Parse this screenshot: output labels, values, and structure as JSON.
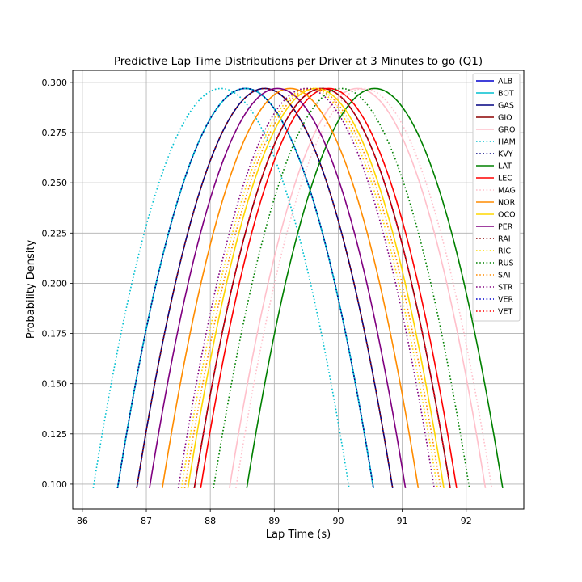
{
  "chart_data": {
    "type": "line",
    "title": "Predictive Lap Time Distributions per Driver at 3 Minutes to go (Q1)",
    "xlabel": "Lap Time (s)",
    "ylabel": "Probability Density",
    "xlim": [
      85.85,
      92.9
    ],
    "ylim": [
      0.0875,
      0.306
    ],
    "xticks": [
      86,
      87,
      88,
      89,
      90,
      91,
      92
    ],
    "xtick_labels": [
      "86",
      "87",
      "88",
      "89",
      "90",
      "91",
      "92"
    ],
    "yticks": [
      0.1,
      0.125,
      0.15,
      0.175,
      0.2,
      0.225,
      0.25,
      0.275,
      0.3
    ],
    "ytick_labels": [
      "0.100",
      "0.125",
      "0.150",
      "0.175",
      "0.200",
      "0.225",
      "0.250",
      "0.275",
      "0.300"
    ],
    "grid": true,
    "legend_position": "top-right",
    "curve_peak_density": 0.297,
    "curve_min_density": 0.098,
    "curve_half_width_s": 2.0,
    "series": [
      {
        "name": "ALB",
        "mean": 88.55,
        "color": "#0000cd",
        "dash": "solid"
      },
      {
        "name": "BOT",
        "mean": 88.55,
        "color": "#00bfcf",
        "dash": "solid"
      },
      {
        "name": "GAS",
        "mean": 88.85,
        "color": "#000080",
        "dash": "solid"
      },
      {
        "name": "GIO",
        "mean": 89.75,
        "color": "#8b0000",
        "dash": "solid"
      },
      {
        "name": "GRO",
        "mean": 90.3,
        "color": "#ffc0cb",
        "dash": "solid"
      },
      {
        "name": "HAM",
        "mean": 88.17,
        "color": "#00bfcf",
        "dash": "dotted"
      },
      {
        "name": "KVY",
        "mean": 88.55,
        "color": "#000080",
        "dash": "dotted"
      },
      {
        "name": "LAT",
        "mean": 90.57,
        "color": "#008000",
        "dash": "solid"
      },
      {
        "name": "LEC",
        "mean": 89.85,
        "color": "#ff0000",
        "dash": "solid"
      },
      {
        "name": "MAG",
        "mean": 90.4,
        "color": "#ffc0cb",
        "dash": "dotted"
      },
      {
        "name": "NOR",
        "mean": 89.25,
        "color": "#ff8c00",
        "dash": "solid"
      },
      {
        "name": "OCO",
        "mean": 89.65,
        "color": "#ffd700",
        "dash": "solid"
      },
      {
        "name": "PER",
        "mean": 89.05,
        "color": "#800080",
        "dash": "solid"
      },
      {
        "name": "RAI",
        "mean": 88.85,
        "color": "#8b0000",
        "dash": "dotted"
      },
      {
        "name": "RIC",
        "mean": 89.55,
        "color": "#ffd700",
        "dash": "dotted"
      },
      {
        "name": "RUS",
        "mean": 90.05,
        "color": "#008000",
        "dash": "dotted"
      },
      {
        "name": "SAI",
        "mean": 89.6,
        "color": "#ff8c00",
        "dash": "dotted"
      },
      {
        "name": "STR",
        "mean": 89.5,
        "color": "#800080",
        "dash": "dotted"
      },
      {
        "name": "VER",
        "mean": 89.75,
        "color": "#0000cd",
        "dash": "dotted"
      },
      {
        "name": "VET",
        "mean": 89.75,
        "color": "#ff0000",
        "dash": "dotted"
      }
    ]
  }
}
